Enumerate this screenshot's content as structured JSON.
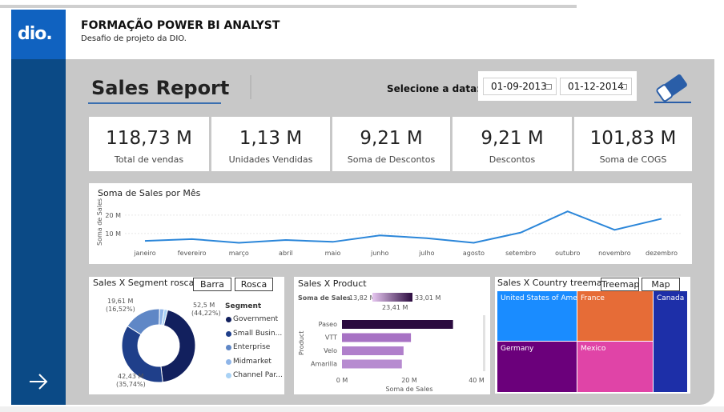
{
  "header": {
    "title": "FORMAÇÃO POWER BI ANALYST",
    "subtitle": "Desafio de projeto da DIO.",
    "logo_text": "dio."
  },
  "report": {
    "title": "Sales Report",
    "date_label": "Selecione a data:",
    "date_start": "01-09-2013",
    "date_end": "01-12-2014",
    "clear_icon": "eraser-icon"
  },
  "kpis": [
    {
      "value": "118,73 M",
      "label": "Total de vendas"
    },
    {
      "value": "1,13 M",
      "label": "Unidades Vendidas"
    },
    {
      "value": "9,21 M",
      "label": "Soma de Descontos"
    },
    {
      "value": "9,21 M",
      "label": "Descontos"
    },
    {
      "value": "101,83 M",
      "label": "Soma de COGS"
    }
  ],
  "line_panel": {
    "title": "Soma de Sales por Mês"
  },
  "segment_panel": {
    "title": "Sales X Segment rosca",
    "btn_bar": "Barra",
    "btn_donut": "Rosca",
    "legend_title": "Segment"
  },
  "product_panel": {
    "title": "Sales X Product",
    "legend_label": "Soma de  Sales",
    "legend_min": "13,82 M",
    "legend_max": "33,01 M",
    "legend_mid": "23,41 M"
  },
  "country_panel": {
    "title": "Sales X Country treemap",
    "btn_treemap": "Treemap",
    "btn_map": "Map"
  },
  "nav": {
    "next_icon": "arrow-right-icon"
  },
  "chart_data": [
    {
      "type": "line",
      "title": "Soma de Sales por Mês",
      "ylabel": "Soma de Sales",
      "x": [
        "janeiro",
        "fevereiro",
        "março",
        "abril",
        "maio",
        "junho",
        "julho",
        "agosto",
        "setembro",
        "outubro",
        "novembro",
        "dezembro"
      ],
      "values": [
        6,
        7,
        5,
        6.5,
        5.5,
        9,
        7.5,
        5,
        10.5,
        22,
        12,
        18
      ],
      "yticks": [
        "10 M",
        "20 M"
      ],
      "ylim": [
        0,
        26
      ],
      "color": "#2b86d9"
    },
    {
      "type": "pie",
      "title": "Sales X Segment rosca",
      "legend_title": "Segment",
      "categories": [
        "Government",
        "Small Business",
        "Enterprise",
        "Midmarket",
        "Channel Partners"
      ],
      "legend_labels": [
        "Government",
        "Small Busin...",
        "Enterprise",
        "Midmarket",
        "Channel Par..."
      ],
      "values": [
        52.5,
        42.43,
        19.61,
        2.4,
        1.79
      ],
      "colors": [
        "#12205e",
        "#1f3f8a",
        "#5f87c6",
        "#8fb5e8",
        "#a9d2f5"
      ],
      "data_labels": [
        {
          "value": "52,5 M",
          "percent": "(44,22%)"
        },
        {
          "value": "42,43 M",
          "percent": "(35,74%)"
        },
        {
          "value": "19,61 M",
          "percent": "(16,52%)"
        }
      ]
    },
    {
      "type": "bar",
      "title": "Sales X Product",
      "orientation": "horizontal",
      "categories": [
        "Paseo",
        "VTT",
        "Velo",
        "Amarilla"
      ],
      "values": [
        33.01,
        20.5,
        18.3,
        17.8
      ],
      "xlabel": "Soma de Sales",
      "ylabel": "Product",
      "xticks": [
        "0 M",
        "20 M",
        "40 M"
      ],
      "xlim": [
        0,
        40
      ],
      "colors": [
        "#2b0b3f",
        "#a772c4",
        "#b07fcb",
        "#b78bd0"
      ]
    },
    {
      "type": "treemap",
      "title": "Sales X Country treemap",
      "categories": [
        "United States of Ame...",
        "France",
        "Canada",
        "Germany",
        "Mexico"
      ],
      "colors": [
        "#1a8cff",
        "#e66c37",
        "#1d2fa8",
        "#6b007b",
        "#e044a7"
      ]
    }
  ]
}
